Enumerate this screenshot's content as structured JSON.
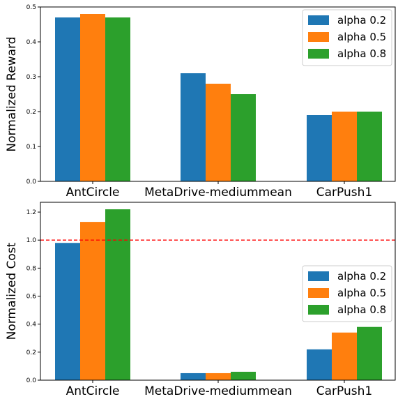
{
  "chart_data": [
    {
      "type": "bar",
      "categories": [
        "AntCircle",
        "MetaDrive-mediummean",
        "CarPush1"
      ],
      "series": [
        {
          "name": "alpha 0.2",
          "color": "#1f77b4",
          "values": [
            0.47,
            0.31,
            0.19
          ]
        },
        {
          "name": "alpha 0.5",
          "color": "#ff7f0e",
          "values": [
            0.48,
            0.28,
            0.2
          ]
        },
        {
          "name": "alpha 0.8",
          "color": "#2ca02c",
          "values": [
            0.47,
            0.25,
            0.2
          ]
        }
      ],
      "ylabel": "Normalized Reward",
      "ylim": [
        0,
        0.5
      ],
      "yticks": [
        "0.0",
        "0.1",
        "0.2",
        "0.3",
        "0.4",
        "0.5"
      ],
      "legend_position": "top-right",
      "grid": false
    },
    {
      "type": "bar",
      "categories": [
        "AntCircle",
        "MetaDrive-mediummean",
        "CarPush1"
      ],
      "series": [
        {
          "name": "alpha 0.2",
          "color": "#1f77b4",
          "values": [
            0.98,
            0.05,
            0.22
          ]
        },
        {
          "name": "alpha 0.5",
          "color": "#ff7f0e",
          "values": [
            1.13,
            0.05,
            0.34
          ]
        },
        {
          "name": "alpha 0.8",
          "color": "#2ca02c",
          "values": [
            1.22,
            0.06,
            0.38
          ]
        }
      ],
      "ylabel": "Normalized Cost",
      "ylim": [
        0,
        1.27
      ],
      "yticks": [
        "0.0",
        "0.2",
        "0.4",
        "0.6",
        "0.8",
        "1.0",
        "1.2"
      ],
      "reference_line": {
        "value": 1.0,
        "color": "#ff0000",
        "style": "dashed"
      },
      "legend_position": "center-right",
      "grid": false
    }
  ]
}
